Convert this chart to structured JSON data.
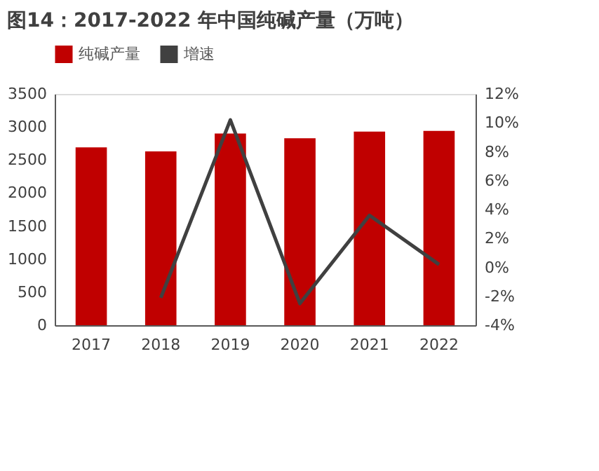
{
  "chart_data": {
    "type": "bar",
    "title": "图14：2017-2022 年中国纯碱产量（万吨）",
    "categories": [
      "2017",
      "2018",
      "2019",
      "2020",
      "2021",
      "2022"
    ],
    "series": [
      {
        "name": "纯碱产量",
        "color": "#c00000",
        "values": [
          2690,
          2630,
          2900,
          2830,
          2930,
          2940
        ]
      },
      {
        "name": "增速",
        "type": "line",
        "axis": "y2",
        "color": "#404040",
        "values": [
          null,
          -2.1,
          10.2,
          -2.5,
          3.6,
          0.2
        ]
      }
    ],
    "ylim": [
      0,
      3500
    ],
    "yticks": [
      0,
      500,
      1000,
      1500,
      2000,
      2500,
      3000,
      3500
    ],
    "y2lim": [
      -4,
      12
    ],
    "y2ticks": [
      {
        "value": -4,
        "label": "-4%"
      },
      {
        "value": -2,
        "label": "-2%"
      },
      {
        "value": 0,
        "label": "0%"
      },
      {
        "value": 2,
        "label": "2%"
      },
      {
        "value": 4,
        "label": "4%"
      },
      {
        "value": 6,
        "label": "6%"
      },
      {
        "value": 8,
        "label": "8%"
      },
      {
        "value": 10,
        "label": "10%"
      },
      {
        "value": 12,
        "label": "12%"
      }
    ],
    "grid": false,
    "legend": "top",
    "marker": "none",
    "line_style": "solid"
  }
}
